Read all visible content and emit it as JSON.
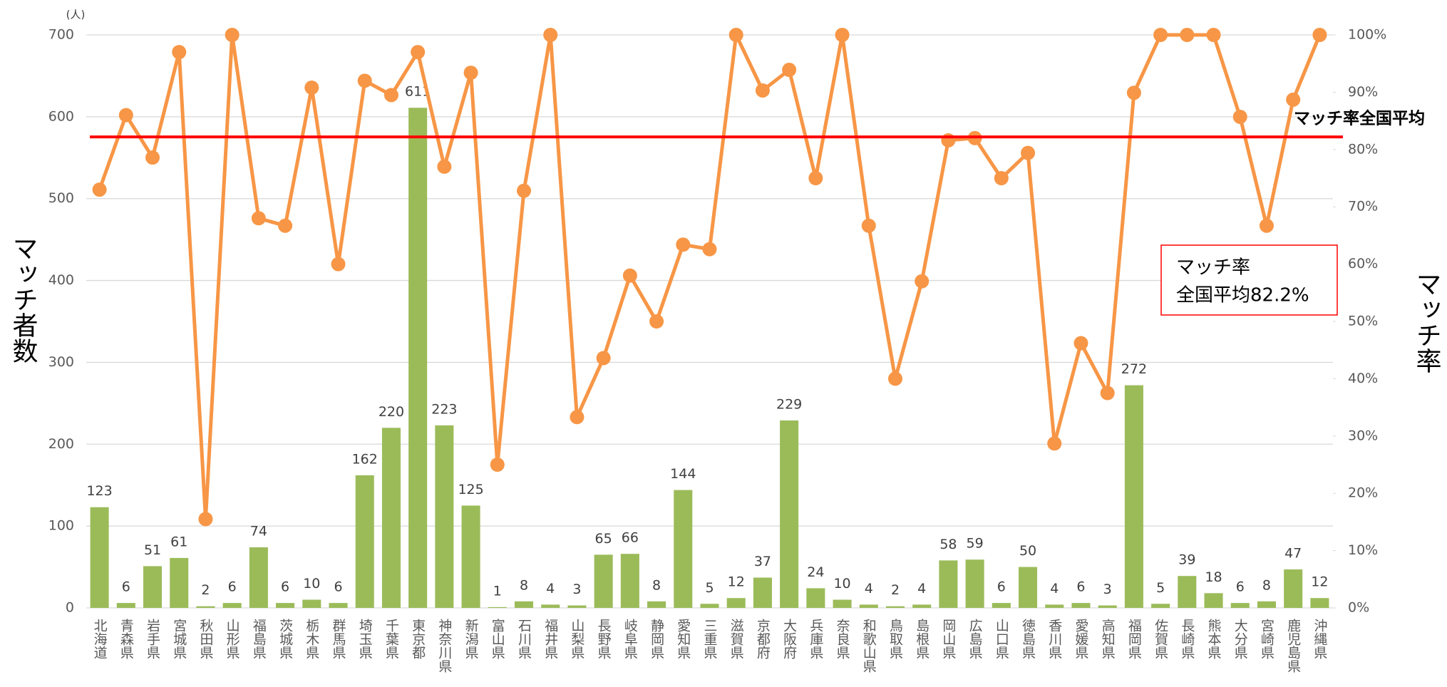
{
  "chart_data": {
    "type": "combo",
    "y_unit": "(人)",
    "y_label": "マッチ者数",
    "y2_label": "マッチ率",
    "categories": [
      "北海道",
      "青森県",
      "岩手県",
      "宮城県",
      "秋田県",
      "山形県",
      "福島県",
      "茨城県",
      "栃木県",
      "群馬県",
      "埼玉県",
      "千葉県",
      "東京都",
      "神奈川県",
      "新潟県",
      "富山県",
      "石川県",
      "福井県",
      "山梨県",
      "長野県",
      "岐阜県",
      "静岡県",
      "愛知県",
      "三重県",
      "滋賀県",
      "京都府",
      "大阪府",
      "兵庫県",
      "奈良県",
      "和歌山県",
      "鳥取県",
      "島根県",
      "岡山県",
      "広島県",
      "山口県",
      "徳島県",
      "香川県",
      "愛媛県",
      "高知県",
      "福岡県",
      "佐賀県",
      "長崎県",
      "熊本県",
      "大分県",
      "宮崎県",
      "鹿児島県",
      "沖縄県"
    ],
    "series": [
      {
        "type": "bar",
        "color": "#9bbb59",
        "axis": "y",
        "show_values": true,
        "values": [
          123,
          6,
          51,
          61,
          2,
          6,
          74,
          6,
          10,
          6,
          162,
          220,
          611,
          223,
          125,
          1,
          8,
          4,
          3,
          65,
          66,
          8,
          144,
          5,
          12,
          37,
          229,
          24,
          10,
          4,
          2,
          4,
          58,
          59,
          6,
          50,
          4,
          6,
          3,
          272,
          5,
          39,
          18,
          6,
          8,
          47,
          12
        ]
      },
      {
        "type": "line",
        "color": "#f79646",
        "axis": "y2",
        "values": [
          73,
          86,
          78.6,
          97,
          15.5,
          100,
          68,
          66.7,
          90.8,
          60,
          92,
          89.5,
          97,
          77,
          93.4,
          25,
          72.8,
          100,
          33.3,
          43.6,
          58,
          50,
          63.4,
          62.6,
          100,
          90.3,
          93.9,
          75,
          100,
          66.7,
          40,
          57,
          81.6,
          82,
          75,
          79.4,
          28.7,
          46.2,
          37.5,
          89.9,
          100,
          100,
          100,
          85.7,
          66.7,
          88.7,
          100
        ]
      }
    ],
    "ylim": [
      0,
      700
    ],
    "yticks": [
      0,
      100,
      200,
      300,
      400,
      500,
      600,
      700
    ],
    "y2lim": [
      0,
      100
    ],
    "y2ticks": [
      {
        "value": 0,
        "label": "0%"
      },
      {
        "value": 10,
        "label": "10%"
      },
      {
        "value": 20,
        "label": "20%"
      },
      {
        "value": 30,
        "label": "30%"
      },
      {
        "value": 40,
        "label": "40%"
      },
      {
        "value": 50,
        "label": "50%"
      },
      {
        "value": 60,
        "label": "60%"
      },
      {
        "value": 70,
        "label": "70%"
      },
      {
        "value": 80,
        "label": "80%"
      },
      {
        "value": 90,
        "label": "90%"
      },
      {
        "value": 100,
        "label": "100%"
      }
    ],
    "grid": true,
    "reference_line": {
      "label": "マッチ率全国平均",
      "value": 82.2,
      "axis": "y2",
      "color": "#ff0000"
    },
    "annotation": [
      "マッチ率",
      "全国平均82.2%"
    ]
  }
}
